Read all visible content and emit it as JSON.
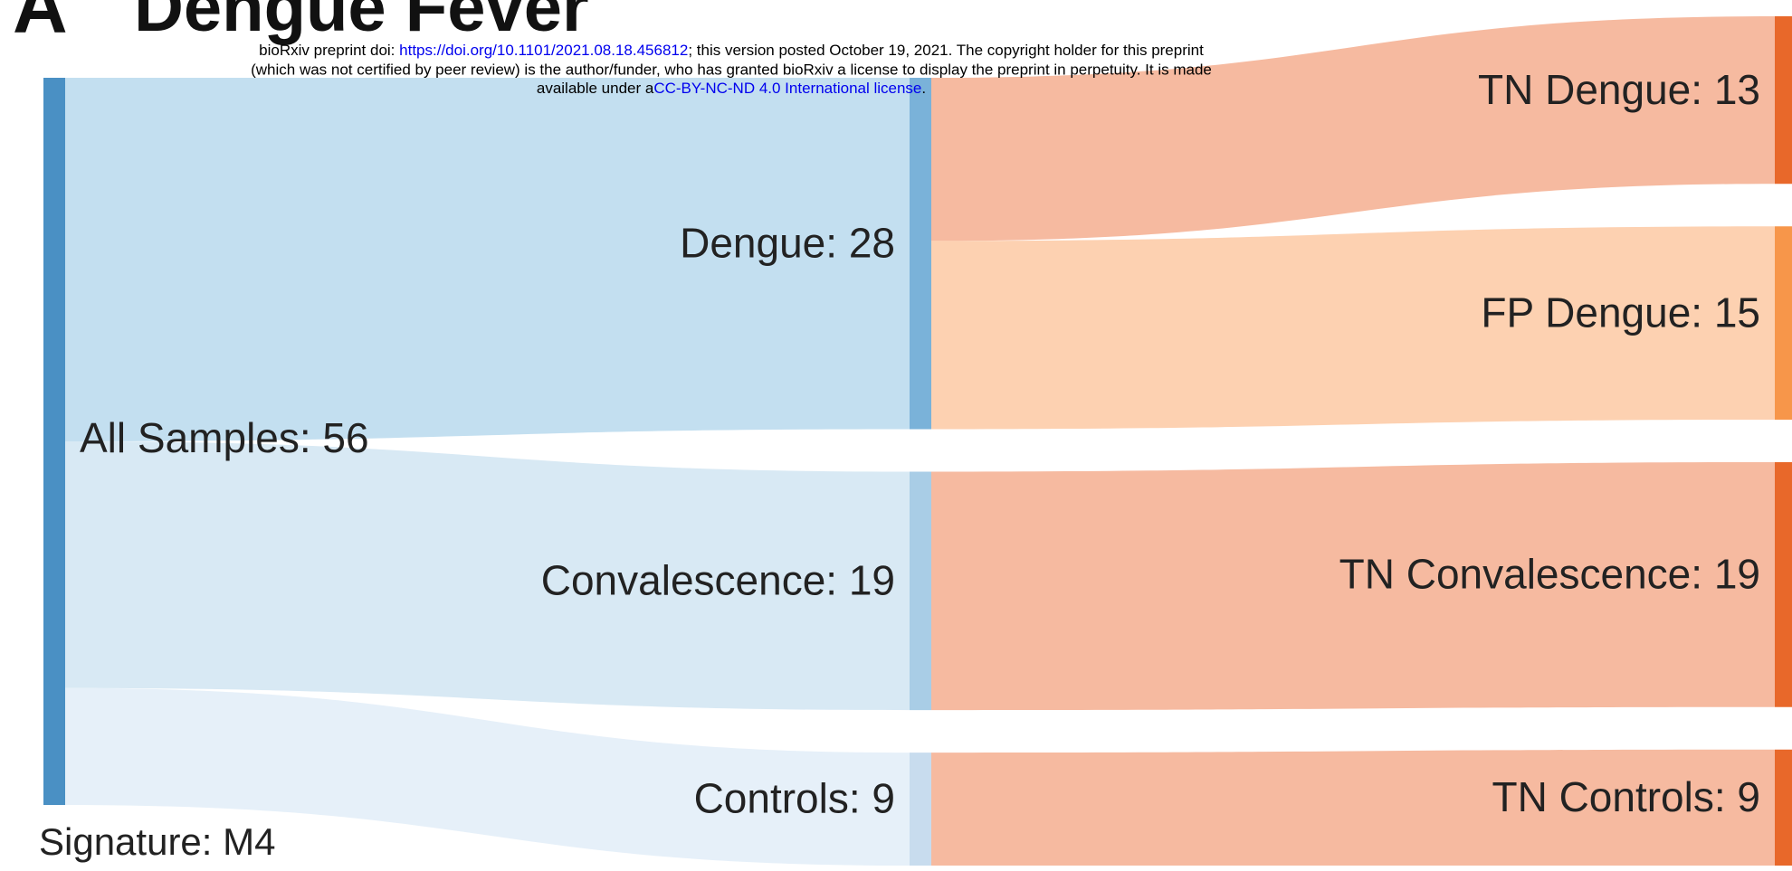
{
  "chart_data": {
    "type": "sankey",
    "panel_label": "A",
    "title": "Dengue Fever",
    "annotation": "Signature: M4",
    "nodes": [
      {
        "label": "All Samples: 56",
        "value": 56,
        "column": 0,
        "color": "#4a90c4"
      },
      {
        "label": "Dengue: 28",
        "value": 28,
        "column": 1,
        "color": "#7ab2d9"
      },
      {
        "label": "Convalescence: 19",
        "value": 19,
        "column": 1,
        "color": "#a9cde6"
      },
      {
        "label": "Controls: 9",
        "value": 9,
        "column": 1,
        "color": "#c8dcee"
      },
      {
        "label": "TN Dengue: 13",
        "value": 13,
        "column": 2,
        "color": "#e8682a"
      },
      {
        "label": "FP Dengue: 15",
        "value": 15,
        "column": 2,
        "color": "#f7964a"
      },
      {
        "label": "TN Convalescence: 19",
        "value": 19,
        "column": 2,
        "color": "#e8682a"
      },
      {
        "label": "TN Controls: 9",
        "value": 9,
        "column": 2,
        "color": "#e8682a"
      }
    ],
    "links": [
      {
        "source": 0,
        "target": 1,
        "value": 28,
        "color": "#c3dff0"
      },
      {
        "source": 0,
        "target": 2,
        "value": 19,
        "color": "#d8e9f4"
      },
      {
        "source": 0,
        "target": 3,
        "value": 9,
        "color": "#e6f0f9"
      },
      {
        "source": 1,
        "target": 4,
        "value": 13,
        "color": "#f6baa0"
      },
      {
        "source": 1,
        "target": 5,
        "value": 15,
        "color": "#fdd1b1"
      },
      {
        "source": 2,
        "target": 6,
        "value": 19,
        "color": "#f6baa0"
      },
      {
        "source": 3,
        "target": 7,
        "value": 9,
        "color": "#f6baa0"
      }
    ]
  },
  "preprint_notice": {
    "line1_prefix": "bioRxiv preprint doi: ",
    "doi": "https://doi.org/10.1101/2021.08.18.456812",
    "line1_suffix": "; this version posted October 19, 2021. The copyright holder for this preprint",
    "line2": "(which was not certified by peer review) is the author/funder, who has granted bioRxiv a license to display the preprint in perpetuity. It is made",
    "line3_prefix": "available under a",
    "license": "CC-BY-NC-ND 4.0 International license",
    "line3_suffix": "."
  }
}
